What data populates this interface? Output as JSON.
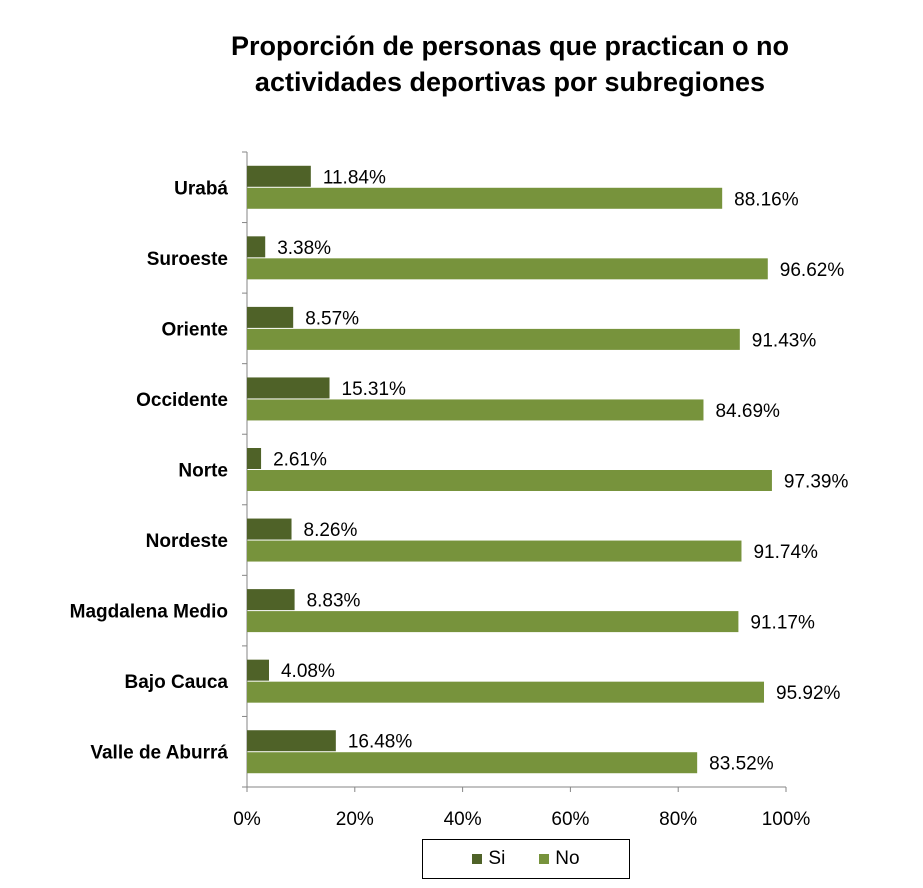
{
  "chart_data": {
    "type": "bar",
    "orientation": "horizontal",
    "title_lines": [
      "Proporción de personas que practican o no",
      "actividades deportivas por subregiones"
    ],
    "categories": [
      "Urabá",
      "Suroeste",
      "Oriente",
      "Occidente",
      "Norte",
      "Nordeste",
      "Magdalena Medio",
      "Bajo Cauca",
      "Valle de Aburrá"
    ],
    "series": [
      {
        "name": "Si",
        "color": "#4f6228",
        "values": [
          11.84,
          3.38,
          8.57,
          15.31,
          2.61,
          8.26,
          8.83,
          4.08,
          16.48
        ],
        "labels": [
          "11.84%",
          "3.38%",
          "8.57%",
          "15.31%",
          "2.61%",
          "8.26%",
          "8.83%",
          "4.08%",
          "16.48%"
        ]
      },
      {
        "name": "No",
        "color": "#77933c",
        "values": [
          88.16,
          96.62,
          91.43,
          84.69,
          97.39,
          91.74,
          91.17,
          95.92,
          83.52
        ],
        "labels": [
          "88.16%",
          "96.62%",
          "91.43%",
          "84.69%",
          "97.39%",
          "91.74%",
          "91.17%",
          "95.92%",
          "83.52%"
        ]
      }
    ],
    "x_ticks": [
      "0%",
      "20%",
      "40%",
      "60%",
      "80%",
      "100%"
    ],
    "xlim": [
      0,
      100
    ],
    "grid": false,
    "legend_position": "bottom"
  }
}
